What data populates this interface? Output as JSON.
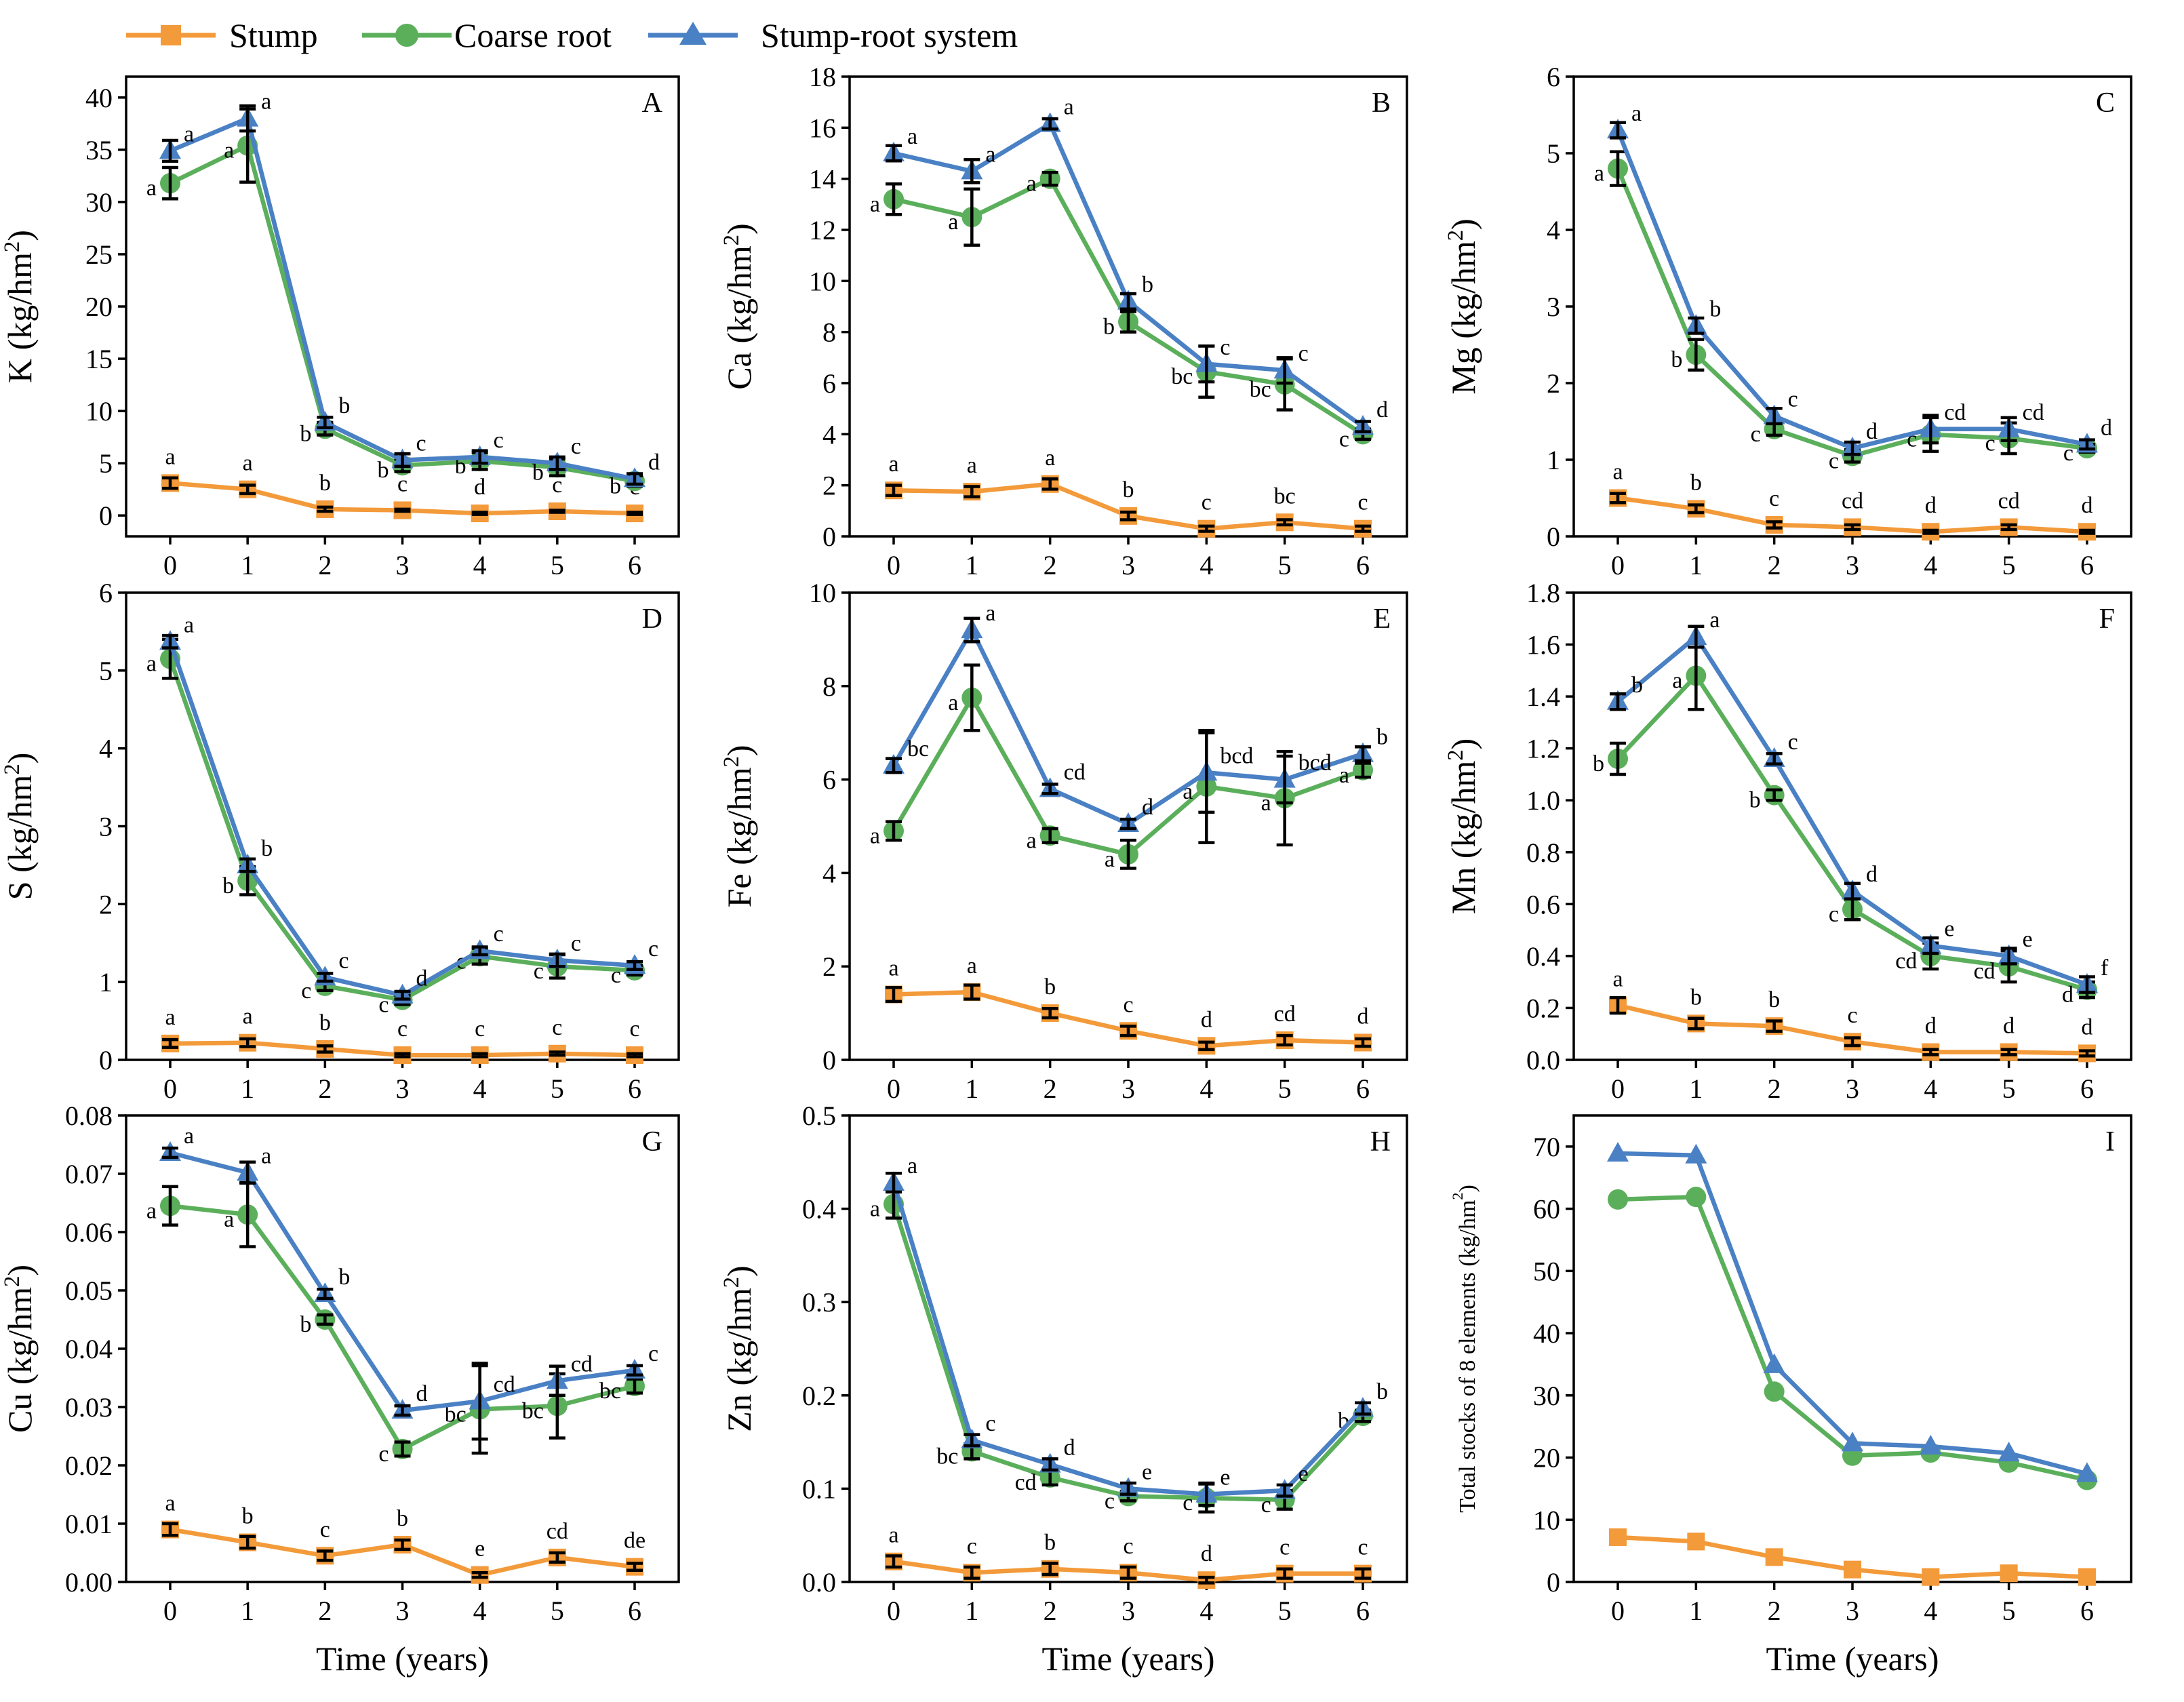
{
  "legend": {
    "stump": "Stump",
    "coarse": "Coarse root",
    "system": "Stump-root system"
  },
  "colors": {
    "stump": "#F39A3A",
    "coarse": "#5BAF5B",
    "system": "#4A80C4"
  },
  "xlabel": "Time (years)",
  "chart_data": [
    {
      "type": "line",
      "panel": "A",
      "ylabel": "K (kg/hm2)",
      "ylim": [
        -2,
        42
      ],
      "yticks": [
        0,
        5,
        10,
        15,
        20,
        25,
        30,
        35,
        40
      ],
      "ytick_labels": [
        "0",
        "5",
        "10",
        "15",
        "20",
        "25",
        "30",
        "35",
        "40"
      ],
      "x": [
        0,
        1,
        2,
        3,
        4,
        5,
        6
      ],
      "series": [
        {
          "name": "Stump",
          "values": [
            3.1,
            2.5,
            0.6,
            0.5,
            0.2,
            0.4,
            0.2
          ],
          "err": [
            0.5,
            0.4,
            0.2,
            0.1,
            0.1,
            0.1,
            0.1
          ],
          "labels": [
            "a",
            "a",
            "b",
            "c",
            "d",
            "c",
            "c"
          ]
        },
        {
          "name": "Coarse root",
          "values": [
            31.8,
            35.4,
            8.3,
            4.8,
            5.2,
            4.6,
            3.3
          ],
          "err": [
            1.5,
            3.5,
            0.6,
            0.6,
            0.8,
            0.8,
            0.5
          ],
          "labels": [
            "a",
            "a",
            "b",
            "b",
            "b",
            "b",
            "b"
          ]
        },
        {
          "name": "Stump-root system",
          "values": [
            34.9,
            38.0,
            8.9,
            5.3,
            5.6,
            5.0,
            3.5
          ],
          "err": [
            1.0,
            1.2,
            0.5,
            0.6,
            0.6,
            0.6,
            0.5
          ],
          "labels": [
            "a",
            "a",
            "b",
            "c",
            "c",
            "c",
            "d"
          ]
        }
      ]
    },
    {
      "type": "line",
      "panel": "B",
      "ylabel": "Ca (kg/hm2)",
      "ylim": [
        0,
        18
      ],
      "yticks": [
        0,
        2,
        4,
        6,
        8,
        10,
        12,
        14,
        16,
        18
      ],
      "ytick_labels": [
        "0",
        "2",
        "4",
        "6",
        "8",
        "10",
        "12",
        "14",
        "16",
        "18"
      ],
      "x": [
        0,
        1,
        2,
        3,
        4,
        5,
        6
      ],
      "series": [
        {
          "name": "Stump",
          "values": [
            1.8,
            1.75,
            2.05,
            0.8,
            0.3,
            0.55,
            0.3
          ],
          "err": [
            0.2,
            0.2,
            0.2,
            0.15,
            0.1,
            0.1,
            0.1
          ],
          "labels": [
            "a",
            "a",
            "a",
            "b",
            "c",
            "bc",
            "c"
          ]
        },
        {
          "name": "Coarse root",
          "values": [
            13.2,
            12.5,
            14.0,
            8.4,
            6.45,
            5.95,
            4.0
          ],
          "err": [
            0.6,
            1.1,
            0.25,
            0.4,
            1.0,
            1.0,
            0.2
          ],
          "labels": [
            "a",
            "a",
            "a",
            "b",
            "bc",
            "bc",
            "c"
          ]
        },
        {
          "name": "Stump-root system",
          "values": [
            15.0,
            14.3,
            16.15,
            9.2,
            6.75,
            6.5,
            4.3
          ],
          "err": [
            0.3,
            0.45,
            0.2,
            0.3,
            0.7,
            0.5,
            0.2
          ],
          "labels": [
            "a",
            "a",
            "a",
            "b",
            "c",
            "c",
            "d"
          ]
        }
      ]
    },
    {
      "type": "line",
      "panel": "C",
      "ylabel": "Mg (kg/hm2)",
      "ylim": [
        0,
        6
      ],
      "yticks": [
        0,
        1,
        2,
        3,
        4,
        5,
        6
      ],
      "ytick_labels": [
        "0",
        "1",
        "2",
        "3",
        "4",
        "5",
        "6"
      ],
      "x": [
        0,
        1,
        2,
        3,
        4,
        5,
        6
      ],
      "series": [
        {
          "name": "Stump",
          "values": [
            0.5,
            0.36,
            0.15,
            0.12,
            0.06,
            0.12,
            0.06
          ],
          "err": [
            0.06,
            0.05,
            0.04,
            0.03,
            0.02,
            0.03,
            0.02
          ],
          "labels": [
            "a",
            "b",
            "c",
            "cd",
            "d",
            "cd",
            "d"
          ]
        },
        {
          "name": "Coarse root",
          "values": [
            4.8,
            2.37,
            1.4,
            1.05,
            1.33,
            1.28,
            1.15
          ],
          "err": [
            0.22,
            0.2,
            0.08,
            0.08,
            0.22,
            0.2,
            0.05
          ],
          "labels": [
            "a",
            "b",
            "c",
            "c",
            "c",
            "c",
            "c"
          ]
        },
        {
          "name": "Stump-root system",
          "values": [
            5.3,
            2.75,
            1.57,
            1.15,
            1.4,
            1.4,
            1.2
          ],
          "err": [
            0.1,
            0.1,
            0.1,
            0.08,
            0.18,
            0.15,
            0.06
          ],
          "labels": [
            "a",
            "b",
            "c",
            "d",
            "cd",
            "cd",
            "d"
          ]
        }
      ]
    },
    {
      "type": "line",
      "panel": "D",
      "ylabel": "S (kg/hm2)",
      "ylim": [
        0,
        6
      ],
      "yticks": [
        0,
        1,
        2,
        3,
        4,
        5,
        6
      ],
      "ytick_labels": [
        "0",
        "1",
        "2",
        "3",
        "4",
        "5",
        "6"
      ],
      "x": [
        0,
        1,
        2,
        3,
        4,
        5,
        6
      ],
      "series": [
        {
          "name": "Stump",
          "values": [
            0.21,
            0.22,
            0.14,
            0.06,
            0.06,
            0.08,
            0.06
          ],
          "err": [
            0.05,
            0.05,
            0.04,
            0.02,
            0.02,
            0.02,
            0.02
          ],
          "labels": [
            "a",
            "a",
            "b",
            "c",
            "c",
            "c",
            "c"
          ]
        },
        {
          "name": "Coarse root",
          "values": [
            5.15,
            2.3,
            0.95,
            0.77,
            1.33,
            1.2,
            1.15
          ],
          "err": [
            0.25,
            0.18,
            0.06,
            0.06,
            0.1,
            0.15,
            0.06
          ],
          "labels": [
            "a",
            "b",
            "c",
            "c",
            "c",
            "c",
            "c"
          ]
        },
        {
          "name": "Stump-root system",
          "values": [
            5.37,
            2.5,
            1.06,
            0.83,
            1.4,
            1.28,
            1.21
          ],
          "err": [
            0.08,
            0.08,
            0.05,
            0.05,
            0.05,
            0.08,
            0.05
          ],
          "labels": [
            "a",
            "b",
            "c",
            "d",
            "c",
            "c",
            "c"
          ]
        }
      ]
    },
    {
      "type": "line",
      "panel": "E",
      "ylabel": "Fe (kg/hm2)",
      "ylim": [
        0,
        10
      ],
      "yticks": [
        0,
        2,
        4,
        6,
        8,
        10
      ],
      "ytick_labels": [
        "0",
        "2",
        "4",
        "6",
        "8",
        "10"
      ],
      "x": [
        0,
        1,
        2,
        3,
        4,
        5,
        6
      ],
      "series": [
        {
          "name": "Stump",
          "values": [
            1.4,
            1.45,
            1.0,
            0.62,
            0.3,
            0.42,
            0.37
          ],
          "err": [
            0.15,
            0.15,
            0.1,
            0.1,
            0.08,
            0.1,
            0.08
          ],
          "labels": [
            "a",
            "a",
            "b",
            "c",
            "d",
            "cd",
            "d"
          ]
        },
        {
          "name": "Coarse root",
          "values": [
            4.9,
            7.75,
            4.8,
            4.4,
            5.85,
            5.6,
            6.2
          ],
          "err": [
            0.2,
            0.7,
            0.15,
            0.3,
            1.2,
            1.0,
            0.15
          ],
          "labels": [
            "a",
            "a",
            "a",
            "a",
            "a",
            "a",
            "a"
          ]
        },
        {
          "name": "Stump-root system",
          "values": [
            6.3,
            9.2,
            5.8,
            5.05,
            6.15,
            6.0,
            6.55
          ],
          "err": [
            0.15,
            0.25,
            0.1,
            0.1,
            0.85,
            0.5,
            0.15
          ],
          "labels": [
            "bc",
            "a",
            "cd",
            "d",
            "bcd",
            "bcd",
            "b"
          ]
        }
      ]
    },
    {
      "type": "line",
      "panel": "F",
      "ylabel": "Mn (kg/hm2)",
      "ylim": [
        0,
        1.8
      ],
      "yticks": [
        0,
        0.2,
        0.4,
        0.6,
        0.8,
        1.0,
        1.2,
        1.4,
        1.6,
        1.8
      ],
      "ytick_labels": [
        "0.0",
        "0.2",
        "0.4",
        "0.6",
        "0.8",
        "1.0",
        "1.2",
        "1.4",
        "1.6",
        "1.8"
      ],
      "x": [
        0,
        1,
        2,
        3,
        4,
        5,
        6
      ],
      "series": [
        {
          "name": "Stump",
          "values": [
            0.21,
            0.14,
            0.13,
            0.07,
            0.03,
            0.03,
            0.025
          ],
          "err": [
            0.03,
            0.02,
            0.02,
            0.015,
            0.01,
            0.01,
            0.01
          ],
          "labels": [
            "a",
            "b",
            "b",
            "c",
            "d",
            "d",
            "d"
          ]
        },
        {
          "name": "Coarse root",
          "values": [
            1.16,
            1.48,
            1.02,
            0.58,
            0.4,
            0.36,
            0.27
          ],
          "err": [
            0.06,
            0.13,
            0.02,
            0.04,
            0.05,
            0.06,
            0.03
          ],
          "labels": [
            "b",
            "a",
            "b",
            "c",
            "cd",
            "cd",
            "d"
          ]
        },
        {
          "name": "Stump-root system",
          "values": [
            1.38,
            1.63,
            1.16,
            0.65,
            0.44,
            0.4,
            0.29
          ],
          "err": [
            0.03,
            0.04,
            0.02,
            0.03,
            0.03,
            0.03,
            0.03
          ],
          "labels": [
            "b",
            "a",
            "c",
            "d",
            "e",
            "e",
            "f"
          ]
        }
      ]
    },
    {
      "type": "line",
      "panel": "G",
      "ylabel": "Cu (kg/hm2)",
      "ylim": [
        0,
        0.08
      ],
      "yticks": [
        0,
        0.01,
        0.02,
        0.03,
        0.04,
        0.05,
        0.06,
        0.07,
        0.08
      ],
      "ytick_labels": [
        "0.00",
        "0.01",
        "0.02",
        "0.03",
        "0.04",
        "0.05",
        "0.06",
        "0.07",
        "0.08"
      ],
      "x": [
        0,
        1,
        2,
        3,
        4,
        5,
        6
      ],
      "series": [
        {
          "name": "Stump",
          "values": [
            0.009,
            0.0068,
            0.0045,
            0.0064,
            0.0012,
            0.0042,
            0.0026
          ],
          "err": [
            0.001,
            0.001,
            0.0008,
            0.0008,
            0.0004,
            0.0008,
            0.0006
          ],
          "labels": [
            "a",
            "b",
            "c",
            "b",
            "e",
            "cd",
            "de"
          ]
        },
        {
          "name": "Coarse root",
          "values": [
            0.0645,
            0.063,
            0.045,
            0.0228,
            0.0296,
            0.0302,
            0.0336
          ],
          "err": [
            0.0033,
            0.0055,
            0.0008,
            0.0012,
            0.0075,
            0.0055,
            0.0012
          ],
          "labels": [
            "a",
            "a",
            "b",
            "c",
            "bc",
            "bc",
            "bc"
          ]
        },
        {
          "name": "Stump-root system",
          "values": [
            0.0736,
            0.0702,
            0.0494,
            0.0294,
            0.031,
            0.0345,
            0.0363
          ],
          "err": [
            0.0008,
            0.0018,
            0.0008,
            0.0008,
            0.0065,
            0.0025,
            0.0008
          ],
          "labels": [
            "a",
            "a",
            "b",
            "d",
            "cd",
            "cd",
            "c"
          ]
        }
      ]
    },
    {
      "type": "line",
      "panel": "H",
      "ylabel": "Zn (kg/hm2)",
      "ylim": [
        0,
        0.5
      ],
      "yticks": [
        0,
        0.1,
        0.2,
        0.3,
        0.4,
        0.5
      ],
      "ytick_labels": [
        "0.0",
        "0.1",
        "0.2",
        "0.3",
        "0.4",
        "0.5"
      ],
      "x": [
        0,
        1,
        2,
        3,
        4,
        5,
        6
      ],
      "series": [
        {
          "name": "Stump",
          "values": [
            0.022,
            0.01,
            0.014,
            0.01,
            0.002,
            0.009,
            0.009
          ],
          "err": [
            0.006,
            0.006,
            0.006,
            0.006,
            0.003,
            0.005,
            0.005
          ],
          "labels": [
            "a",
            "c",
            "b",
            "c",
            "d",
            "c",
            "c"
          ]
        },
        {
          "name": "Coarse root",
          "values": [
            0.405,
            0.14,
            0.112,
            0.092,
            0.09,
            0.088,
            0.178
          ],
          "err": [
            0.015,
            0.008,
            0.008,
            0.005,
            0.015,
            0.01,
            0.006
          ],
          "labels": [
            "a",
            "bc",
            "cd",
            "c",
            "c",
            "c",
            "b"
          ]
        },
        {
          "name": "Stump-root system",
          "values": [
            0.428,
            0.152,
            0.126,
            0.1,
            0.094,
            0.098,
            0.186
          ],
          "err": [
            0.01,
            0.006,
            0.006,
            0.006,
            0.012,
            0.006,
            0.006
          ],
          "labels": [
            "a",
            "c",
            "d",
            "e",
            "e",
            "e",
            "b"
          ]
        }
      ]
    },
    {
      "type": "line",
      "panel": "I",
      "ylabel": "Total stocks of 8 elements (kg/hm2)",
      "ylim": [
        0,
        75
      ],
      "yticks": [
        0,
        10,
        20,
        30,
        40,
        50,
        60,
        70
      ],
      "ytick_labels": [
        "0",
        "10",
        "20",
        "30",
        "40",
        "50",
        "60",
        "70"
      ],
      "x": [
        0,
        1,
        2,
        3,
        4,
        5,
        6
      ],
      "series": [
        {
          "name": "Stump",
          "values": [
            7.2,
            6.5,
            4.0,
            2.0,
            0.8,
            1.4,
            0.8
          ]
        },
        {
          "name": "Coarse root",
          "values": [
            61.5,
            61.9,
            30.6,
            20.3,
            20.8,
            19.2,
            16.4
          ]
        },
        {
          "name": "Stump-root system",
          "values": [
            68.9,
            68.6,
            34.9,
            22.3,
            21.8,
            20.7,
            17.4
          ]
        }
      ]
    }
  ]
}
